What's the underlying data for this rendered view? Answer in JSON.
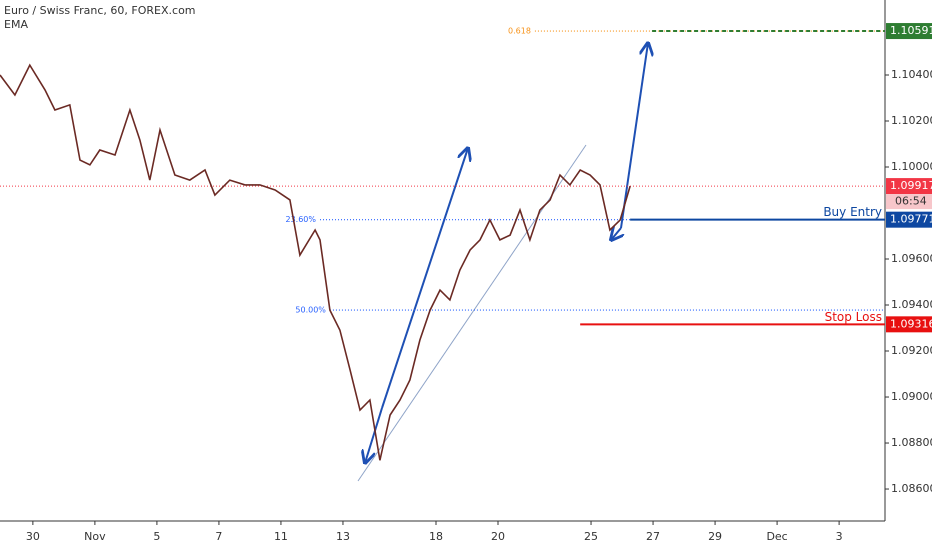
{
  "chart_data": {
    "type": "line",
    "title": "Euro / Swiss Franc, 60, FOREX.com",
    "indicator": "EMA",
    "x": [
      -1.06,
      -0.58,
      -0.1,
      0.39,
      0.71,
      1.19,
      1.52,
      1.84,
      2.16,
      2.65,
      3.13,
      3.45,
      3.77,
      4.1,
      4.58,
      5.06,
      5.55,
      5.87,
      6.35,
      6.84,
      7.32,
      7.81,
      8.29,
      8.61,
      9.1,
      9.26,
      9.58,
      9.9,
      10.23,
      10.55,
      10.87,
      11.19,
      11.52,
      11.84,
      12.16,
      12.48,
      12.81,
      13.13,
      13.45,
      13.77,
      14.1,
      14.42,
      14.74,
      15.06,
      15.39,
      15.71,
      16.03,
      16.35,
      16.68,
      17,
      17.32,
      17.65,
      17.97,
      18.29,
      18.61,
      18.94,
      19.26
    ],
    "series": [
      {
        "color": "#6b2a24",
        "values": [
          1.104,
          1.10313,
          1.10443,
          1.10335,
          1.10248,
          1.1027,
          1.1003,
          1.10009,
          1.10074,
          1.10052,
          1.10248,
          1.10117,
          1.09943,
          1.10161,
          1.09965,
          1.09943,
          1.09987,
          1.09878,
          1.09943,
          1.09922,
          1.09922,
          1.099,
          1.09857,
          1.09617,
          1.09726,
          1.09683,
          1.09378,
          1.09291,
          1.09117,
          1.08943,
          1.08987,
          1.08725,
          1.08922,
          1.08987,
          1.09074,
          1.09248,
          1.09378,
          1.09465,
          1.09422,
          1.09552,
          1.09639,
          1.09683,
          1.0977,
          1.09683,
          1.09704,
          1.09813,
          1.09683,
          1.09813,
          1.09857,
          1.09965,
          1.09922,
          1.09987,
          1.09965,
          1.09922,
          1.09726,
          1.0977,
          1.09917
        ]
      }
    ],
    "xlim": [
      -1.06,
      27.48
    ],
    "xticks": [
      {
        "value": 0,
        "label": "30"
      },
      {
        "value": 2,
        "label": "Nov"
      },
      {
        "value": 4,
        "label": "5"
      },
      {
        "value": 6,
        "label": "7"
      },
      {
        "value": 8,
        "label": "11"
      },
      {
        "value": 10,
        "label": "13"
      },
      {
        "value": 13,
        "label": "18"
      },
      {
        "value": 15,
        "label": "20"
      },
      {
        "value": 18,
        "label": "25"
      },
      {
        "value": 20,
        "label": "27"
      },
      {
        "value": 22,
        "label": "29"
      },
      {
        "value": 24,
        "label": "Dec"
      },
      {
        "value": 26,
        "label": "3"
      }
    ],
    "ylim": [
      1.08461,
      1.10726
    ],
    "yticks": [
      {
        "value": 1.086,
        "label": "1.08600"
      },
      {
        "value": 1.088,
        "label": "1.08800"
      },
      {
        "value": 1.09,
        "label": "1.09000"
      },
      {
        "value": 1.092,
        "label": "1.09200"
      },
      {
        "value": 1.094,
        "label": "1.09400"
      },
      {
        "value": 1.096,
        "label": "1.09600"
      },
      {
        "value": 1.1,
        "label": "1.10000"
      },
      {
        "value": 1.102,
        "label": "1.10200"
      },
      {
        "value": 1.104,
        "label": "1.10400"
      }
    ],
    "current_price": {
      "value": 1.09917,
      "countdown": "06:54",
      "color": "#f23645"
    },
    "fib_levels": [
      {
        "label": "0.618",
        "value": 1.10591,
        "from": 16.19,
        "color": "#f7931a"
      },
      {
        "label": "23.60%",
        "value": 1.09771,
        "from": 9.26,
        "color": "#2962ff"
      },
      {
        "label": "50.00%",
        "value": 1.09378,
        "from": 9.58,
        "color": "#2962ff"
      }
    ],
    "levels": [
      {
        "value": 1.10591,
        "from": 19.97,
        "color": "#2e7d32"
      },
      {
        "name": "Buy Entry",
        "value": 1.09771,
        "from": 19.26,
        "color": "#0d47a1"
      },
      {
        "name": "Stop Loss",
        "value": 1.09316,
        "from": 17.65,
        "color": "#e81010"
      }
    ]
  }
}
